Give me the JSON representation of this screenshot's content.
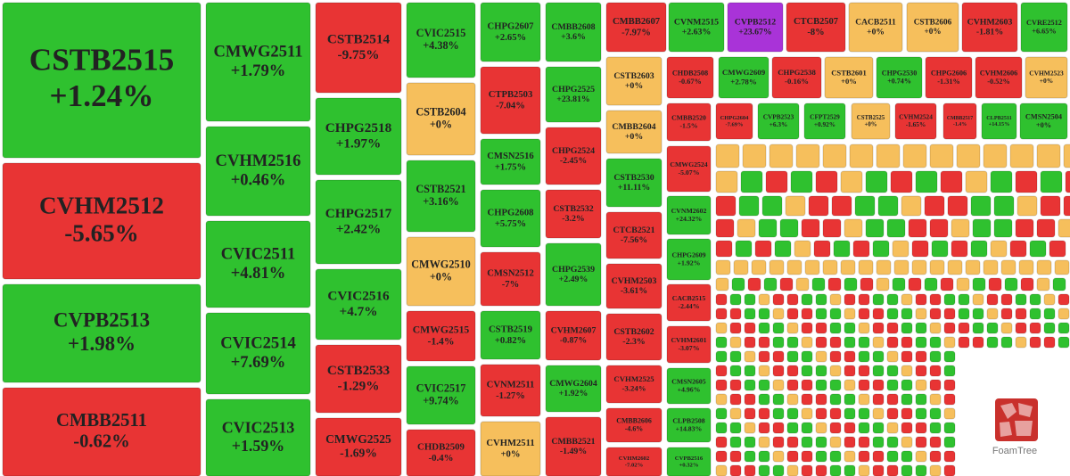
{
  "chart_data": {
    "type": "treemap",
    "categories": [
      "CSTB2515",
      "CVHM2512",
      "CVPB2513",
      "CMBB2511",
      "CMWG2511",
      "CVHM2516",
      "CVIC2511",
      "CVIC2514",
      "CVIC2513",
      "CSTB2514",
      "CHPG2518",
      "CHPG2517",
      "CVIC2516",
      "CSTB2533",
      "CMWG2525",
      "CVIC2515",
      "CSTB2604",
      "CSTB2521",
      "CMWG2510",
      "CMWG2515",
      "CVIC2517",
      "CHDB2509",
      "CHPG2607",
      "CTPB2503",
      "CMSN2516",
      "CHPG2608",
      "CMSN2512",
      "CSTB2519",
      "CVNM2511",
      "CVHM2511",
      "CMBB2608",
      "CHPG2525",
      "CHPG2524",
      "CSTB2532",
      "CHPG2539",
      "CVHM2607",
      "CMWG2604",
      "CMBB2521",
      "CMBB2607",
      "CVNM2515",
      "CVPB2512",
      "CTCB2507",
      "CACB2511",
      "CSTB2606",
      "CVHM2603",
      "CVRE2512",
      "CSTB2603",
      "CMBB2604",
      "CSTB2530",
      "CTCB2521",
      "CVHM2503",
      "CSTB2602",
      "CVHM2525",
      "CMBB2606",
      "CVHM2602",
      "CHDB2508",
      "CMWG2609",
      "CHPG2538",
      "CSTB2601",
      "CHPG2530",
      "CHPG2606",
      "CVHM2606",
      "CVHM2523",
      "CMBB2520",
      "CMWG2524",
      "CVNM2602",
      "CHPG2609",
      "CACB2515",
      "CVHM2601",
      "CMSN2605",
      "CLPB2508",
      "CVPB2516",
      "CHPG2604",
      "CVPB2523",
      "CFPT2529",
      "CSTB2525",
      "CVHM2524",
      "CMBB2517",
      "CLPB2511",
      "CMSN2504"
    ],
    "values": [
      1.24,
      -5.65,
      1.98,
      -0.62,
      1.79,
      0.46,
      4.81,
      7.69,
      1.59,
      -9.75,
      1.97,
      2.42,
      4.7,
      -1.29,
      -1.69,
      4.38,
      0,
      3.16,
      0,
      -1.4,
      9.74,
      -0.4,
      2.65,
      -7.04,
      1.75,
      5.75,
      -7,
      0.82,
      -1.27,
      0,
      3.6,
      23.81,
      -2.45,
      -3.2,
      2.49,
      -0.87,
      1.92,
      -1.49,
      -7.97,
      2.63,
      23.67,
      -8,
      0,
      0,
      -1.81,
      6.65,
      0,
      0,
      11.11,
      -7.56,
      -3.61,
      -2.3,
      -3.24,
      -4.6,
      -7.02,
      -0.67,
      2.78,
      -0.16,
      0,
      0.74,
      -1.31,
      -0.52,
      0,
      -1.5,
      -5.07,
      24.32,
      1.92,
      -2.44,
      -3.07,
      4.96,
      14.83,
      0.32,
      -7.69,
      6.3,
      0.92,
      0,
      -1.65,
      -1.4,
      14.15,
      0
    ],
    "value_labels": [
      "+1.24%",
      "-5.65%",
      "+1.98%",
      "-0.62%",
      "+1.79%",
      "+0.46%",
      "+4.81%",
      "+7.69%",
      "+1.59%",
      "-9.75%",
      "+1.97%",
      "+2.42%",
      "+4.7%",
      "-1.29%",
      "-1.69%",
      "+4.38%",
      "+0%",
      "+3.16%",
      "+0%",
      "-1.4%",
      "+9.74%",
      "-0.4%",
      "+2.65%",
      "-7.04%",
      "+1.75%",
      "+5.75%",
      "-7%",
      "+0.82%",
      "-1.27%",
      "+0%",
      "+3.6%",
      "+23.81%",
      "-2.45%",
      "-3.2%",
      "+2.49%",
      "-0.87%",
      "+1.92%",
      "-1.49%",
      "-7.97%",
      "+2.63%",
      "+23.67%",
      "-8%",
      "+0%",
      "+0%",
      "-1.81%",
      "+6.65%",
      "+0%",
      "+0%",
      "+11.11%",
      "-7.56%",
      "-3.61%",
      "-2.3%",
      "-3.24%",
      "-4.6%",
      "-7.02%",
      "-0.67%",
      "+2.78%",
      "-0.16%",
      "+0%",
      "+0.74%",
      "-1.31%",
      "-0.52%",
      "+0%",
      "-1.5%",
      "-5.07%",
      "+24.32%",
      "+1.92%",
      "-2.44%",
      "-3.07%",
      "+4.96%",
      "+14.83%",
      "+0.32%",
      "-7.69%",
      "+6.3%",
      "+0.92%",
      "+0%",
      "-1.65%",
      "-1.4%",
      "+14.15%",
      "+0%"
    ],
    "colors": [
      "#2fc12f",
      "#e83434",
      "#2fc12f",
      "#e83434",
      "#2fc12f",
      "#2fc12f",
      "#2fc12f",
      "#2fc12f",
      "#2fc12f",
      "#e83434",
      "#2fc12f",
      "#2fc12f",
      "#2fc12f",
      "#e83434",
      "#e83434",
      "#2fc12f",
      "#f6bf5c",
      "#2fc12f",
      "#f6bf5c",
      "#e83434",
      "#2fc12f",
      "#e83434",
      "#2fc12f",
      "#e83434",
      "#2fc12f",
      "#2fc12f",
      "#e83434",
      "#2fc12f",
      "#e83434",
      "#f6bf5c",
      "#2fc12f",
      "#2fc12f",
      "#e83434",
      "#e83434",
      "#2fc12f",
      "#e83434",
      "#2fc12f",
      "#e83434",
      "#e83434",
      "#2fc12f",
      "#a933d8",
      "#e83434",
      "#f6bf5c",
      "#f6bf5c",
      "#e83434",
      "#2fc12f",
      "#f6bf5c",
      "#f6bf5c",
      "#2fc12f",
      "#e83434",
      "#e83434",
      "#e83434",
      "#e83434",
      "#e83434",
      "#e83434",
      "#e83434",
      "#2fc12f",
      "#e83434",
      "#f6bf5c",
      "#2fc12f",
      "#e83434",
      "#e83434",
      "#f6bf5c",
      "#e83434",
      "#e83434",
      "#2fc12f",
      "#2fc12f",
      "#e83434",
      "#e83434",
      "#2fc12f",
      "#2fc12f",
      "#2fc12f",
      "#e83434",
      "#2fc12f",
      "#2fc12f",
      "#f6bf5c",
      "#e83434",
      "#e83434",
      "#2fc12f",
      "#2fc12f"
    ]
  },
  "logo": "FoamTree"
}
